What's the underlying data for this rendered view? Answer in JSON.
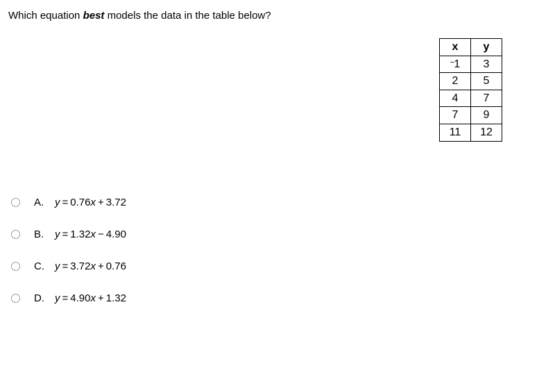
{
  "question": {
    "prefix": "Which equation ",
    "emph": "best",
    "suffix": " models the data in the table below?"
  },
  "table": {
    "headers": {
      "x": "x",
      "y": "y"
    },
    "rows": [
      {
        "x_neg": "−",
        "x": "1",
        "y": "3"
      },
      {
        "x_neg": "",
        "x": "2",
        "y": "5"
      },
      {
        "x_neg": "",
        "x": "4",
        "y": "7"
      },
      {
        "x_neg": "",
        "x": "7",
        "y": "9"
      },
      {
        "x_neg": "",
        "x": "11",
        "y": "12"
      }
    ]
  },
  "choices": [
    {
      "letter": "A.",
      "lhs": "y",
      "eq": "=",
      "m": "0.76",
      "xv": "x",
      "op": "+",
      "b": "3.72"
    },
    {
      "letter": "B.",
      "lhs": "y",
      "eq": "=",
      "m": "1.32",
      "xv": "x",
      "op": "−",
      "b": "4.90"
    },
    {
      "letter": "C.",
      "lhs": "y",
      "eq": "=",
      "m": "3.72",
      "xv": "x",
      "op": "+",
      "b": "0.76"
    },
    {
      "letter": "D.",
      "lhs": "y",
      "eq": "=",
      "m": "4.90",
      "xv": "x",
      "op": "+",
      "b": "1.32"
    }
  ],
  "colors": {
    "text": "#000000",
    "background": "#ffffff",
    "radio_border": "#9e9e9e",
    "table_border": "#000000"
  }
}
